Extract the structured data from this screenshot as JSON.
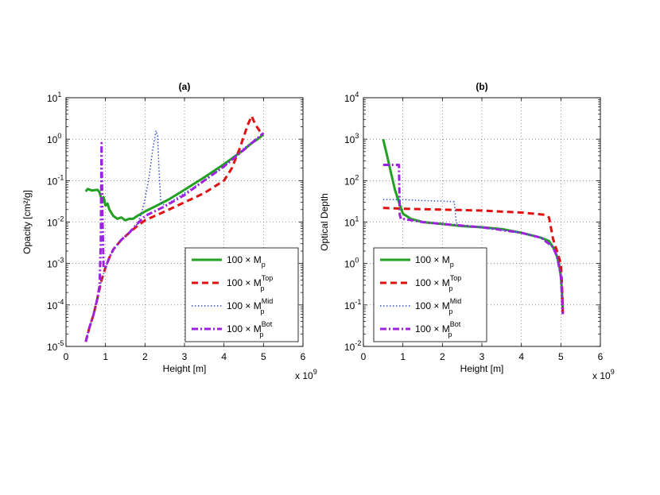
{
  "chart_data": [
    {
      "id": "a",
      "type": "line",
      "title": "(a)",
      "xlabel": "Height [m]",
      "ylabel": "Opacity [cm²/g]",
      "x_multiplier": "x 10",
      "x_multiplier_exp": "9",
      "xlim": [
        0,
        6
      ],
      "ylim_log10": [
        -5,
        1
      ],
      "yscale": "log",
      "grid": "dotted",
      "legend_position": "bottom-right",
      "x_ticks": [
        "0",
        "1",
        "2",
        "3",
        "4",
        "5",
        "6"
      ],
      "y_ticks": [
        {
          "base": "10",
          "exp": "-5"
        },
        {
          "base": "10",
          "exp": "-4"
        },
        {
          "base": "10",
          "exp": "-3"
        },
        {
          "base": "10",
          "exp": "-2"
        },
        {
          "base": "10",
          "exp": "-1"
        },
        {
          "base": "10",
          "exp": "0"
        },
        {
          "base": "10",
          "exp": "1"
        }
      ],
      "series": [
        {
          "name": "100 × M_p",
          "color": "#22a022",
          "style": "solid",
          "x": [
            0.5,
            0.55,
            0.65,
            0.8,
            0.85,
            0.9,
            0.95,
            1.0,
            1.05,
            1.1,
            1.2,
            1.3,
            1.4,
            1.5,
            1.6,
            1.7,
            1.8,
            2.0,
            2.3,
            2.6,
            3.0,
            3.5,
            4.0,
            4.5,
            4.7,
            4.85,
            5.0
          ],
          "y": [
            0.055,
            0.063,
            0.058,
            0.06,
            0.052,
            0.035,
            0.04,
            0.025,
            0.028,
            0.02,
            0.014,
            0.012,
            0.013,
            0.011,
            0.012,
            0.012,
            0.014,
            0.018,
            0.025,
            0.035,
            0.06,
            0.12,
            0.25,
            0.55,
            0.8,
            1.0,
            1.3
          ]
        },
        {
          "name": "100 × M_p^Top",
          "color": "#e01010",
          "style": "dashed",
          "x": [
            0.5,
            0.6,
            0.7,
            0.8,
            0.9,
            1.0,
            1.1,
            1.2,
            1.4,
            1.6,
            1.8,
            2.0,
            2.5,
            3.0,
            3.5,
            4.0,
            4.2,
            4.4,
            4.6,
            4.7,
            4.8,
            4.9,
            5.0
          ],
          "y": [
            1.3e-05,
            3e-05,
            6e-05,
            0.00015,
            0.0004,
            0.0008,
            0.0014,
            0.0022,
            0.0037,
            0.0055,
            0.008,
            0.011,
            0.018,
            0.03,
            0.05,
            0.1,
            0.2,
            0.6,
            2.2,
            3.6,
            2.2,
            1.6,
            1.3
          ]
        },
        {
          "name": "100 × M_p^Mid",
          "color": "#3050d0",
          "style": "dotted",
          "x": [
            0.5,
            0.6,
            0.7,
            0.8,
            0.9,
            1.0,
            1.2,
            1.4,
            1.6,
            1.8,
            1.9,
            2.0,
            2.1,
            2.2,
            2.28,
            2.32,
            2.36,
            2.4,
            2.5,
            3.0,
            3.5,
            4.0,
            4.5,
            5.0
          ],
          "y": [
            1.3e-05,
            3e-05,
            6e-05,
            0.00015,
            0.0004,
            0.0008,
            0.0022,
            0.0037,
            0.0055,
            0.009,
            0.015,
            0.035,
            0.12,
            0.6,
            1.6,
            1.2,
            0.15,
            0.03,
            0.025,
            0.05,
            0.1,
            0.22,
            0.6,
            1.4
          ]
        },
        {
          "name": "100 × M_p^Bot",
          "color": "#a020e0",
          "style": "dashdot",
          "x": [
            0.5,
            0.6,
            0.7,
            0.8,
            0.85,
            0.88,
            0.9,
            0.92,
            0.95,
            1.0,
            1.1,
            1.2,
            1.4,
            1.6,
            1.8,
            2.0,
            2.5,
            3.0,
            3.5,
            4.0,
            4.5,
            5.0
          ],
          "y": [
            1.3e-05,
            3e-05,
            6e-05,
            0.00015,
            0.0003,
            0.003,
            0.8,
            0.02,
            0.0008,
            0.0008,
            0.0014,
            0.0022,
            0.0037,
            0.0055,
            0.009,
            0.014,
            0.024,
            0.045,
            0.1,
            0.22,
            0.55,
            1.4
          ]
        }
      ],
      "legend": [
        {
          "base": "100 × M",
          "sub": "p",
          "sup": ""
        },
        {
          "base": "100 × M",
          "sub": "p",
          "sup": "Top"
        },
        {
          "base": "100 × M",
          "sub": "p",
          "sup": "Mid"
        },
        {
          "base": "100 × M",
          "sub": "p",
          "sup": "Bot"
        }
      ]
    },
    {
      "id": "b",
      "type": "line",
      "title": "(b)",
      "xlabel": "Height [m]",
      "ylabel": "Optical Depth",
      "x_multiplier": "x 10",
      "x_multiplier_exp": "9",
      "xlim": [
        0,
        6
      ],
      "ylim_log10": [
        -2,
        4
      ],
      "yscale": "log",
      "grid": "dotted",
      "legend_position": "bottom-left",
      "x_ticks": [
        "0",
        "1",
        "2",
        "3",
        "4",
        "5",
        "6"
      ],
      "y_ticks": [
        {
          "base": "10",
          "exp": "-2"
        },
        {
          "base": "10",
          "exp": "-1"
        },
        {
          "base": "10",
          "exp": "0"
        },
        {
          "base": "10",
          "exp": "1"
        },
        {
          "base": "10",
          "exp": "2"
        },
        {
          "base": "10",
          "exp": "3"
        },
        {
          "base": "10",
          "exp": "4"
        }
      ],
      "series": [
        {
          "name": "100 × M_p",
          "color": "#22a022",
          "style": "solid",
          "x": [
            0.5,
            0.6,
            0.7,
            0.8,
            0.9,
            1.0,
            1.2,
            1.5,
            2.0,
            2.5,
            3.0,
            3.5,
            4.0,
            4.5,
            4.7,
            4.8,
            4.9,
            4.95,
            5.0,
            5.03,
            5.05
          ],
          "y": [
            1000,
            400,
            150,
            60,
            30,
            16,
            12,
            10,
            9,
            8,
            7.5,
            6.8,
            5.5,
            4.2,
            3.5,
            2.5,
            1.5,
            1.0,
            0.5,
            0.2,
            0.06
          ]
        },
        {
          "name": "100 × M_p^Top",
          "color": "#e01010",
          "style": "dashed",
          "x": [
            0.5,
            1.0,
            2.0,
            3.0,
            4.0,
            4.6,
            4.7,
            4.8,
            4.9,
            5.0,
            5.03,
            5.05
          ],
          "y": [
            22,
            21,
            20,
            19,
            17,
            15,
            13,
            4,
            2,
            1,
            0.3,
            0.06
          ]
        },
        {
          "name": "100 × M_p^Mid",
          "color": "#3050d0",
          "style": "dotted",
          "x": [
            0.5,
            1.0,
            1.5,
            2.0,
            2.3,
            2.35,
            2.4,
            3.0,
            4.0,
            4.5,
            4.8,
            4.9,
            5.0,
            5.05
          ],
          "y": [
            35,
            35,
            33,
            32,
            31,
            10,
            8.5,
            7.5,
            5.5,
            4.2,
            2.5,
            1.5,
            0.5,
            0.06
          ]
        },
        {
          "name": "100 × M_p^Bot",
          "color": "#a020e0",
          "style": "dashdot",
          "x": [
            0.5,
            0.85,
            0.9,
            0.92,
            0.95,
            1.0,
            1.5,
            2.0,
            3.0,
            4.0,
            4.5,
            4.8,
            4.9,
            5.0,
            5.05
          ],
          "y": [
            240,
            240,
            240,
            15,
            12,
            12,
            10,
            9,
            7.5,
            5.5,
            4.2,
            2.5,
            1.5,
            0.5,
            0.06
          ]
        }
      ],
      "legend": [
        {
          "base": "100 × M",
          "sub": "p",
          "sup": ""
        },
        {
          "base": "100 × M",
          "sub": "p",
          "sup": "Top"
        },
        {
          "base": "100 × M",
          "sub": "p",
          "sup": "Mid"
        },
        {
          "base": "100 × M",
          "sub": "p",
          "sup": "Bot"
        }
      ]
    }
  ]
}
